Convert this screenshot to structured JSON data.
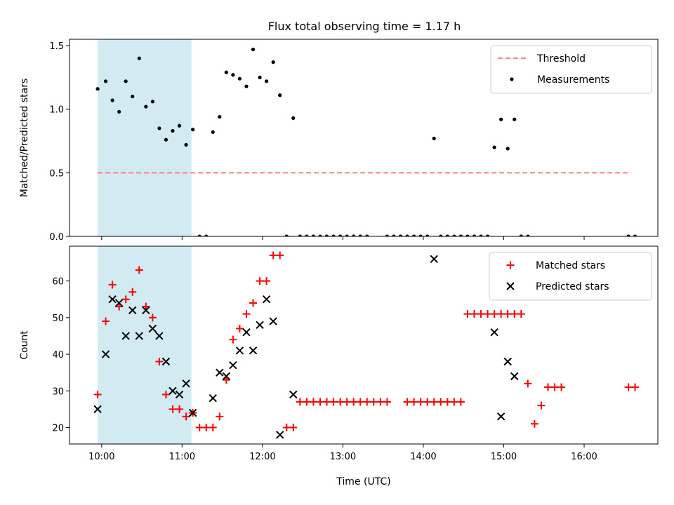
{
  "title": "Flux total observing time = 1.17 h",
  "colors": {
    "threshold": "#ff7f7f",
    "measurement": "#000000",
    "matched": "#ff0000",
    "predicted": "#000000",
    "shade": "#add8e6"
  },
  "chart_data": [
    {
      "type": "scatter",
      "ylabel": "Matched/Predicted stars",
      "xlim": [
        "09:36",
        "16:55"
      ],
      "ylim": [
        0,
        1.55
      ],
      "x_ticks": [
        "10:00",
        "11:00",
        "12:00",
        "13:00",
        "14:00",
        "15:00",
        "16:00"
      ],
      "y_ticks": [
        "0.0",
        "0.5",
        "1.0",
        "1.5"
      ],
      "shaded_span": [
        "09:57",
        "11:07"
      ],
      "legend": {
        "placement": "top-right",
        "entries": [
          "Threshold",
          "Measurements"
        ]
      },
      "threshold": {
        "name": "Threshold",
        "value": 0.5,
        "x": [
          "09:57",
          "16:35"
        ]
      },
      "series": [
        {
          "name": "Measurements",
          "marker": "dot",
          "points": [
            [
              "09:57",
              1.16
            ],
            [
              "10:03",
              1.22
            ],
            [
              "10:08",
              1.07
            ],
            [
              "10:13",
              0.98
            ],
            [
              "10:18",
              1.22
            ],
            [
              "10:23",
              1.1
            ],
            [
              "10:28",
              1.4
            ],
            [
              "10:33",
              1.02
            ],
            [
              "10:38",
              1.06
            ],
            [
              "10:43",
              0.85
            ],
            [
              "10:48",
              0.76
            ],
            [
              "10:53",
              0.83
            ],
            [
              "10:58",
              0.87
            ],
            [
              "11:03",
              0.72
            ],
            [
              "11:08",
              0.84
            ],
            [
              "11:13",
              0.0
            ],
            [
              "11:18",
              0.0
            ],
            [
              "11:23",
              0.82
            ],
            [
              "11:28",
              0.94
            ],
            [
              "11:33",
              1.29
            ],
            [
              "11:38",
              1.27
            ],
            [
              "11:43",
              1.24
            ],
            [
              "11:48",
              1.18
            ],
            [
              "11:53",
              1.47
            ],
            [
              "11:58",
              1.25
            ],
            [
              "12:03",
              1.22
            ],
            [
              "12:08",
              1.37
            ],
            [
              "12:13",
              1.11
            ],
            [
              "12:18",
              0.0
            ],
            [
              "12:23",
              0.93
            ],
            [
              "12:28",
              0.0
            ],
            [
              "12:33",
              0.0
            ],
            [
              "12:38",
              0.0
            ],
            [
              "12:43",
              0.0
            ],
            [
              "12:48",
              0.0
            ],
            [
              "12:53",
              0.0
            ],
            [
              "12:58",
              0.0
            ],
            [
              "13:03",
              0.0
            ],
            [
              "13:08",
              0.0
            ],
            [
              "13:13",
              0.0
            ],
            [
              "13:18",
              0.0
            ],
            [
              "13:33",
              0.0
            ],
            [
              "13:38",
              0.0
            ],
            [
              "13:43",
              0.0
            ],
            [
              "13:48",
              0.0
            ],
            [
              "13:53",
              0.0
            ],
            [
              "13:58",
              0.0
            ],
            [
              "14:03",
              0.0
            ],
            [
              "14:08",
              0.77
            ],
            [
              "14:13",
              0.0
            ],
            [
              "14:18",
              0.0
            ],
            [
              "14:23",
              0.0
            ],
            [
              "14:28",
              0.0
            ],
            [
              "14:33",
              0.0
            ],
            [
              "14:38",
              0.0
            ],
            [
              "14:43",
              0.0
            ],
            [
              "14:48",
              0.0
            ],
            [
              "14:53",
              0.7
            ],
            [
              "14:58",
              0.92
            ],
            [
              "15:03",
              0.69
            ],
            [
              "15:08",
              0.92
            ],
            [
              "15:13",
              0.0
            ],
            [
              "15:18",
              0.0
            ],
            [
              "16:33",
              0.0
            ],
            [
              "16:38",
              0.0
            ]
          ]
        }
      ]
    },
    {
      "type": "scatter",
      "xlabel": "Time (UTC)",
      "ylabel": "Count",
      "xlim": [
        "09:36",
        "16:55"
      ],
      "ylim": [
        15.5,
        69.5
      ],
      "x_ticks": [
        "10:00",
        "11:00",
        "12:00",
        "13:00",
        "14:00",
        "15:00",
        "16:00"
      ],
      "y_ticks": [
        "20",
        "30",
        "40",
        "50",
        "60"
      ],
      "shaded_span": [
        "09:57",
        "11:07"
      ],
      "legend": {
        "placement": "top-right",
        "entries": [
          "Matched stars",
          "Predicted stars"
        ]
      },
      "series": [
        {
          "name": "Matched stars",
          "marker": "plus",
          "points": [
            [
              "09:57",
              29
            ],
            [
              "10:03",
              49
            ],
            [
              "10:08",
              59
            ],
            [
              "10:13",
              53
            ],
            [
              "10:18",
              55
            ],
            [
              "10:23",
              57
            ],
            [
              "10:28",
              63
            ],
            [
              "10:33",
              53
            ],
            [
              "10:38",
              50
            ],
            [
              "10:43",
              38
            ],
            [
              "10:48",
              29
            ],
            [
              "10:53",
              25
            ],
            [
              "10:58",
              25
            ],
            [
              "11:03",
              23
            ],
            [
              "11:08",
              24
            ],
            [
              "11:13",
              20
            ],
            [
              "11:18",
              20
            ],
            [
              "11:23",
              20
            ],
            [
              "11:28",
              23
            ],
            [
              "11:33",
              33
            ],
            [
              "11:38",
              44
            ],
            [
              "11:43",
              47
            ],
            [
              "11:48",
              51
            ],
            [
              "11:53",
              54
            ],
            [
              "11:58",
              60
            ],
            [
              "12:03",
              60
            ],
            [
              "12:08",
              67
            ],
            [
              "12:13",
              67
            ],
            [
              "12:18",
              20
            ],
            [
              "12:23",
              20
            ],
            [
              "12:28",
              27
            ],
            [
              "12:33",
              27
            ],
            [
              "12:38",
              27
            ],
            [
              "12:43",
              27
            ],
            [
              "12:48",
              27
            ],
            [
              "12:53",
              27
            ],
            [
              "12:58",
              27
            ],
            [
              "13:03",
              27
            ],
            [
              "13:08",
              27
            ],
            [
              "13:13",
              27
            ],
            [
              "13:18",
              27
            ],
            [
              "13:23",
              27
            ],
            [
              "13:28",
              27
            ],
            [
              "13:33",
              27
            ],
            [
              "13:48",
              27
            ],
            [
              "13:53",
              27
            ],
            [
              "13:58",
              27
            ],
            [
              "14:03",
              27
            ],
            [
              "14:08",
              27
            ],
            [
              "14:13",
              27
            ],
            [
              "14:18",
              27
            ],
            [
              "14:23",
              27
            ],
            [
              "14:28",
              27
            ],
            [
              "14:33",
              51
            ],
            [
              "14:38",
              51
            ],
            [
              "14:43",
              51
            ],
            [
              "14:48",
              51
            ],
            [
              "14:53",
              51
            ],
            [
              "14:58",
              51
            ],
            [
              "15:03",
              51
            ],
            [
              "15:08",
              51
            ],
            [
              "15:13",
              51
            ],
            [
              "15:18",
              32
            ],
            [
              "15:23",
              21
            ],
            [
              "15:28",
              26
            ],
            [
              "15:33",
              31
            ],
            [
              "15:38",
              31
            ],
            [
              "15:43",
              31
            ],
            [
              "16:33",
              31
            ],
            [
              "16:38",
              31
            ]
          ]
        },
        {
          "name": "Predicted stars",
          "marker": "x",
          "points": [
            [
              "09:57",
              25
            ],
            [
              "10:03",
              40
            ],
            [
              "10:08",
              55
            ],
            [
              "10:13",
              54
            ],
            [
              "10:18",
              45
            ],
            [
              "10:23",
              52
            ],
            [
              "10:28",
              45
            ],
            [
              "10:33",
              52
            ],
            [
              "10:38",
              47
            ],
            [
              "10:43",
              45
            ],
            [
              "10:48",
              38
            ],
            [
              "10:53",
              30
            ],
            [
              "10:58",
              29
            ],
            [
              "11:03",
              32
            ],
            [
              "11:08",
              24
            ],
            [
              "11:23",
              28
            ],
            [
              "11:28",
              35
            ],
            [
              "11:33",
              34
            ],
            [
              "11:38",
              37
            ],
            [
              "11:43",
              41
            ],
            [
              "11:48",
              46
            ],
            [
              "11:53",
              41
            ],
            [
              "11:58",
              48
            ],
            [
              "12:03",
              55
            ],
            [
              "12:08",
              49
            ],
            [
              "12:13",
              18
            ],
            [
              "12:23",
              29
            ],
            [
              "14:08",
              66
            ],
            [
              "14:53",
              46
            ],
            [
              "14:58",
              23
            ],
            [
              "15:03",
              38
            ],
            [
              "15:08",
              34
            ]
          ]
        }
      ]
    }
  ]
}
